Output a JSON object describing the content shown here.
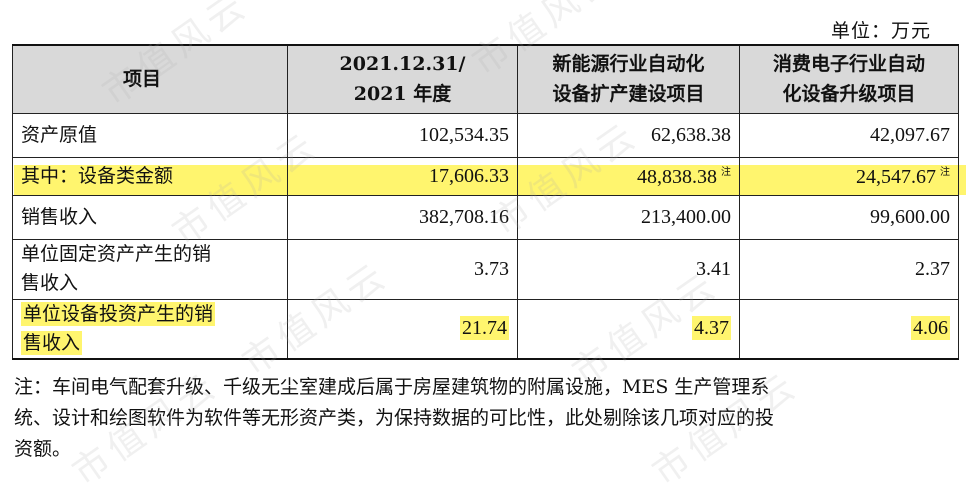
{
  "unit_label": "单位：万元",
  "table": {
    "headers": {
      "col1": "项目",
      "col2_line1": "2021.12.31/",
      "col2_line2": "2021 年度",
      "col3_line1": "新能源行业自动化",
      "col3_line2": "设备扩产建设项目",
      "col4_line1": "消费电子行业自动",
      "col4_line2": "化设备升级项目"
    },
    "rows": [
      {
        "label": "资产原值",
        "v1": "102,534.35",
        "v2": "62,638.38",
        "v3": "42,097.67"
      },
      {
        "label": "其中：设备类金额",
        "v1": "17,606.33",
        "v2": "48,838.38",
        "v3": "24,547.67",
        "note2": "注",
        "note3": "注"
      },
      {
        "label": "销售收入",
        "v1": "382,708.16",
        "v2": "213,400.00",
        "v3": "99,600.00"
      },
      {
        "label_line1": "单位固定资产产生的销",
        "label_line2": "售收入",
        "v1": "3.73",
        "v2": "3.41",
        "v3": "2.37"
      },
      {
        "label_line1": "单位设备投资产生的销",
        "label_line2": "售收入",
        "v1": "21.74",
        "v2": "4.37",
        "v3": "4.06"
      }
    ]
  },
  "footnote_line1": "注：车间电气配套升级、千级无尘室建成后属于房屋建筑物的附属设施，MES 生产管理系",
  "footnote_line2": "统、设计和绘图软件为软件等无形资产类，为保持数据的可比性，此处剔除该几项对应的投",
  "footnote_line3": "资额。",
  "watermark": "市值风云",
  "highlight_color": "#fff56e",
  "header_bg": "#d9d9d9"
}
